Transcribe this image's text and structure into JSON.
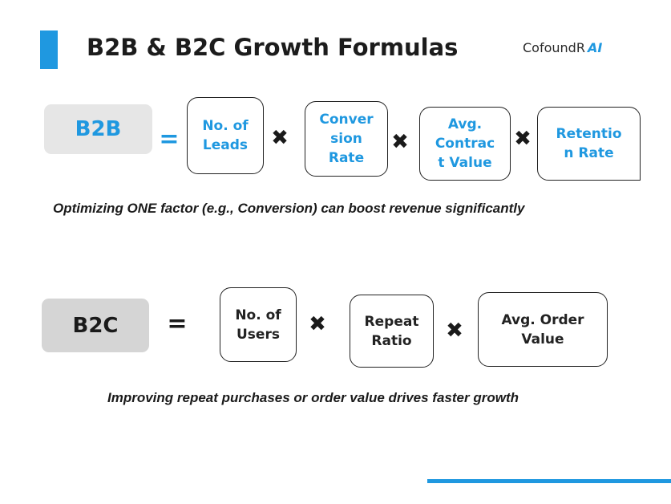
{
  "header": {
    "title": "B2B & B2C Growth Formulas",
    "brand_name": "CofoundR",
    "brand_suffix": "AI"
  },
  "b2b": {
    "tag": "B2B",
    "equals": "=",
    "factors": [
      {
        "label": "No. of\nLeads"
      },
      {
        "label": "Conver\nsion\nRate"
      },
      {
        "label": "Avg.\nContrac\nt Value"
      },
      {
        "label": "Retentio\nn Rate"
      }
    ],
    "note": "Optimizing ONE factor (e.g., Conversion) can boost revenue significantly"
  },
  "b2c": {
    "tag": "B2C",
    "equals": "=",
    "factors": [
      {
        "label": "No. of\nUsers"
      },
      {
        "label": "Repeat\nRatio"
      },
      {
        "label": "Avg. Order\nValue"
      }
    ],
    "note": "Improving repeat purchases or order value drives faster growth"
  },
  "operator": "✖",
  "colors": {
    "accent": "#1f98e0",
    "text": "#1a1a1a",
    "b2b_tag_bg": "#e6e6e6",
    "b2c_tag_bg": "#d5d5d5"
  }
}
